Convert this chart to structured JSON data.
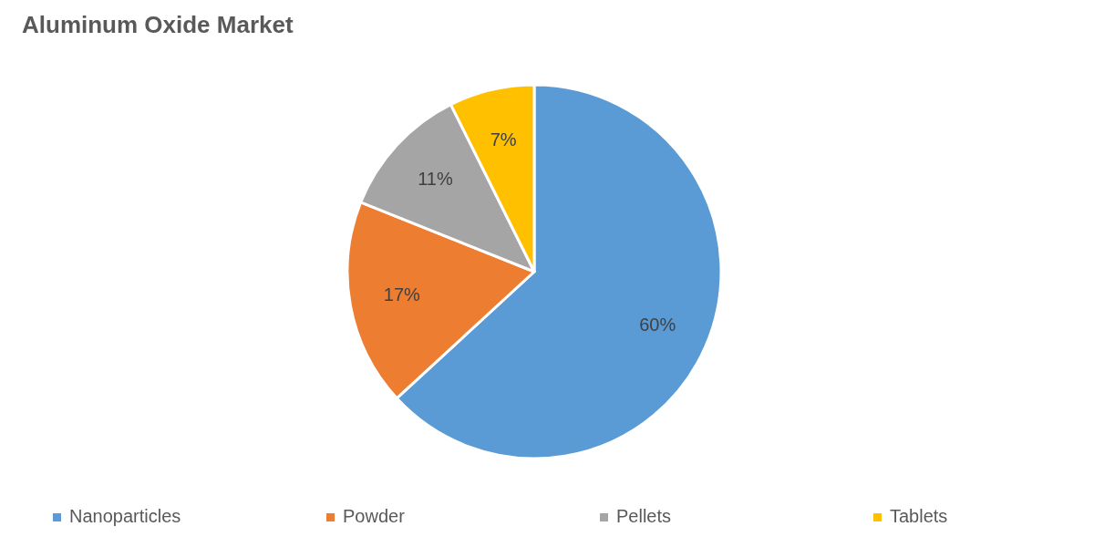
{
  "chart_data": {
    "type": "pie",
    "title": "Aluminum Oxide Market",
    "categories": [
      "Nanoparticles",
      "Powder",
      "Pellets",
      "Tablets"
    ],
    "values": [
      60,
      17,
      11,
      7
    ],
    "colors": [
      "#5b9bd5",
      "#ed7d31",
      "#a5a5a5",
      "#ffc000"
    ],
    "value_labels": [
      "60%",
      "17%",
      "11%",
      "7%"
    ],
    "legend": "bottom"
  }
}
